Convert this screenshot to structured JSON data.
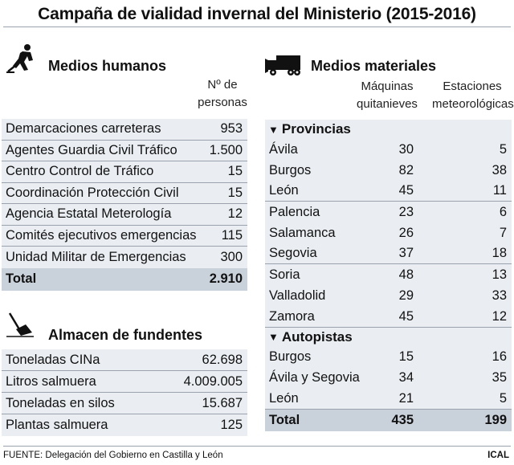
{
  "title": "Campaña de vialidad invernal del Ministerio (2015-2016)",
  "humanos": {
    "heading": "Medios humanos",
    "icon": "worker-icon",
    "col_header": "Nº de personas",
    "rows": [
      {
        "label": "Demarcaciones carreteras",
        "value": "953"
      },
      {
        "label": "Agentes Guardia Civil Tráfico",
        "value": "1.500"
      },
      {
        "label": "Centro Control de Tráfico",
        "value": "15"
      },
      {
        "label": "Coordinación Protección Civil",
        "value": "15"
      },
      {
        "label": "Agencia Estatal Meterología",
        "value": "12"
      },
      {
        "label": "Comités ejecutivos emergencias",
        "value": "115"
      },
      {
        "label": "Unidad Militar de Emergencias",
        "value": "300"
      }
    ],
    "total": {
      "label": "Total",
      "value": "2.910"
    }
  },
  "fundentes": {
    "heading": "Almacen de fundentes",
    "icon": "shovel-icon",
    "rows": [
      {
        "label": "Toneladas CINa",
        "value": "62.698"
      },
      {
        "label": "Litros salmuera",
        "value": "4.009.005"
      },
      {
        "label": "Toneladas en silos",
        "value": "15.687"
      },
      {
        "label": "Plantas salmuera",
        "value": "125"
      }
    ]
  },
  "materiales": {
    "heading": "Medios materiales",
    "icon": "snowplow-truck-icon",
    "col1_header": "Máquinas quitanieves",
    "col2_header": "Estaciones meteorológicas",
    "provincias_label": "Provincias",
    "provincias": [
      {
        "label": "Ávila",
        "maquinas": "30",
        "estaciones": "5"
      },
      {
        "label": "Burgos",
        "maquinas": "82",
        "estaciones": "38"
      },
      {
        "label": "León",
        "maquinas": "45",
        "estaciones": "11"
      },
      {
        "label": "Palencia",
        "maquinas": "23",
        "estaciones": "6"
      },
      {
        "label": "Salamanca",
        "maquinas": "26",
        "estaciones": "7"
      },
      {
        "label": "Segovia",
        "maquinas": "37",
        "estaciones": "18"
      },
      {
        "label": "Soria",
        "maquinas": "48",
        "estaciones": "13"
      },
      {
        "label": "Valladolid",
        "maquinas": "29",
        "estaciones": "33"
      },
      {
        "label": "Zamora",
        "maquinas": "45",
        "estaciones": "12"
      }
    ],
    "autopistas_label": "Autopistas",
    "autopistas": [
      {
        "label": "Burgos",
        "maquinas": "15",
        "estaciones": "16"
      },
      {
        "label": "Ávila y Segovia",
        "maquinas": "34",
        "estaciones": "35"
      },
      {
        "label": "León",
        "maquinas": "21",
        "estaciones": "5"
      }
    ],
    "total": {
      "label": "Total",
      "maquinas": "435",
      "estaciones": "199"
    }
  },
  "footer": {
    "source": "FUENTE: Delegación del Gobierno en Castilla y León",
    "credit": "ICAL"
  }
}
